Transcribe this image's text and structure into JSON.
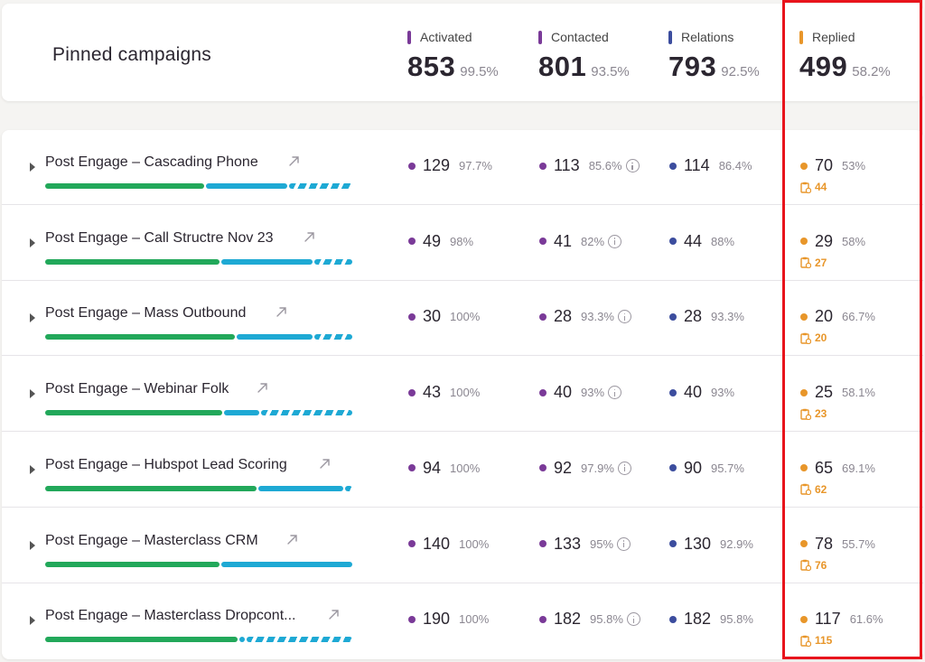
{
  "summary": {
    "title": "Pinned campaigns",
    "stats": [
      {
        "label": "Activated",
        "value": "853",
        "percent": "99.5%",
        "color": "#7a3a98"
      },
      {
        "label": "Contacted",
        "value": "801",
        "percent": "93.5%",
        "color": "#7a3a98"
      },
      {
        "label": "Relations",
        "value": "793",
        "percent": "92.5%",
        "color": "#3c4d9e"
      },
      {
        "label": "Replied",
        "value": "499",
        "percent": "58.2%",
        "color": "#e8962a"
      }
    ]
  },
  "colors": {
    "activated": "#7a3a98",
    "contacted": "#7a3a98",
    "relations": "#3c4d9e",
    "replied": "#e8962a",
    "highlight": "#e8141c"
  },
  "campaigns": [
    {
      "name": "Post Engage – Cascading Phone",
      "activated": "129",
      "activated_pct": "97.7%",
      "contacted": "113",
      "contacted_pct": "85.6%",
      "relations": "114",
      "relations_pct": "86.4%",
      "replied": "70",
      "replied_pct": "53%",
      "replied_sub": "44",
      "progress": {
        "green": 0.52,
        "blue": 0.27,
        "stripe": 0.21
      }
    },
    {
      "name": "Post Engage – Call Structre Nov 23",
      "activated": "49",
      "activated_pct": "98%",
      "contacted": "41",
      "contacted_pct": "82%",
      "relations": "44",
      "relations_pct": "88%",
      "replied": "29",
      "replied_pct": "58%",
      "replied_sub": "27",
      "progress": {
        "green": 0.57,
        "blue": 0.3,
        "stripe": 0.13
      }
    },
    {
      "name": "Post Engage – Mass Outbound",
      "activated": "30",
      "activated_pct": "100%",
      "contacted": "28",
      "contacted_pct": "93.3%",
      "relations": "28",
      "relations_pct": "93.3%",
      "replied": "20",
      "replied_pct": "66.7%",
      "replied_sub": "20",
      "progress": {
        "green": 0.62,
        "blue": 0.25,
        "stripe": 0.13
      }
    },
    {
      "name": "Post Engage – Webinar Folk",
      "activated": "43",
      "activated_pct": "100%",
      "contacted": "40",
      "contacted_pct": "93%",
      "relations": "40",
      "relations_pct": "93%",
      "replied": "25",
      "replied_pct": "58.1%",
      "replied_sub": "23",
      "progress": {
        "green": 0.58,
        "blue": 0.12,
        "stripe": 0.3
      }
    },
    {
      "name": "Post Engage – Hubspot Lead Scoring",
      "activated": "94",
      "activated_pct": "100%",
      "contacted": "92",
      "contacted_pct": "97.9%",
      "relations": "90",
      "relations_pct": "95.7%",
      "replied": "65",
      "replied_pct": "69.1%",
      "replied_sub": "62",
      "progress": {
        "green": 0.69,
        "blue": 0.28,
        "stripe": 0.03
      }
    },
    {
      "name": "Post Engage – Masterclass CRM",
      "activated": "140",
      "activated_pct": "100%",
      "contacted": "133",
      "contacted_pct": "95%",
      "relations": "130",
      "relations_pct": "92.9%",
      "replied": "78",
      "replied_pct": "55.7%",
      "replied_sub": "76",
      "progress": {
        "green": 0.57,
        "blue": 0.43,
        "stripe": 0.0
      }
    },
    {
      "name": "Post Engage – Masterclass Dropcont...",
      "activated": "190",
      "activated_pct": "100%",
      "contacted": "182",
      "contacted_pct": "95.8%",
      "relations": "182",
      "relations_pct": "95.8%",
      "replied": "117",
      "replied_pct": "61.6%",
      "replied_sub": "115",
      "progress": {
        "green": 0.63,
        "blue": 0.02,
        "stripe": 0.35
      }
    }
  ]
}
